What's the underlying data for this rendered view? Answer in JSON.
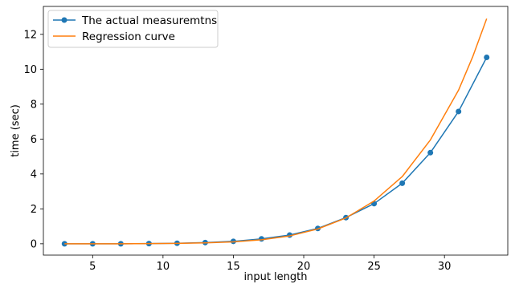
{
  "chart_data": {
    "type": "line",
    "title": "",
    "xlabel": "input length",
    "ylabel": "time (sec)",
    "xlim": [
      1.5,
      34.5
    ],
    "ylim": [
      -0.65,
      13.6
    ],
    "xticks": [
      5,
      10,
      15,
      20,
      25,
      30
    ],
    "yticks": [
      0,
      2,
      4,
      6,
      8,
      10,
      12
    ],
    "grid": false,
    "legend_position": "top-left",
    "series": [
      {
        "name": "The actual measuremtns",
        "color": "#1f77b4",
        "marker": "circle",
        "x": [
          3,
          5,
          7,
          9,
          11,
          13,
          15,
          17,
          19,
          21,
          23,
          25,
          27,
          29,
          31,
          33
        ],
        "y": [
          0.0,
          0.0,
          0.0,
          0.01,
          0.03,
          0.07,
          0.14,
          0.28,
          0.5,
          0.88,
          1.5,
          2.3,
          3.47,
          5.22,
          7.58,
          10.68
        ]
      },
      {
        "name": "Regression curve",
        "color": "#ff7f0e",
        "marker": "none",
        "x": [
          3,
          5,
          7,
          9,
          11,
          13,
          15,
          17,
          19,
          21,
          23,
          25,
          27,
          29,
          31,
          32,
          33
        ],
        "y": [
          0.0,
          0.0,
          0.0,
          0.01,
          0.02,
          0.05,
          0.11,
          0.23,
          0.45,
          0.85,
          1.48,
          2.45,
          3.85,
          5.95,
          8.8,
          10.7,
          12.9
        ]
      }
    ]
  }
}
